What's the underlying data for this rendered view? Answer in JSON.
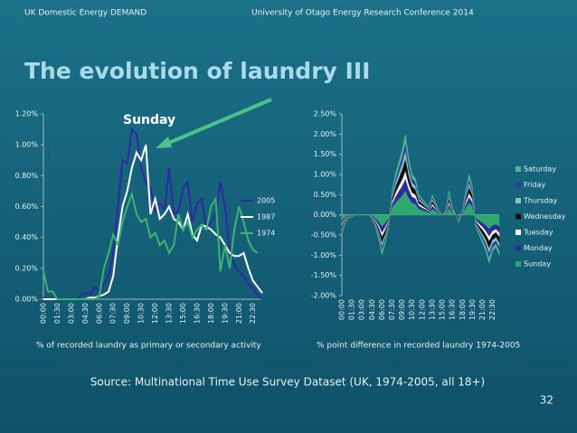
{
  "slide": {
    "header_left": "UK Domestic Energy DEMAND",
    "header_right": "University of Otago Energy Research Conference 2014",
    "title": "The evolution of laundry III",
    "source": "Source: Multinational Time Use Survey Dataset (UK, 1974-2005, all 18+)",
    "page_number": 32
  },
  "chart_data": [
    {
      "type": "line",
      "caption": "% of recorded laundry as primary or secondary activity",
      "annotation": "Sunday",
      "legend": "right",
      "grid": false,
      "categories": [
        "00:00",
        null,
        null,
        "01:30",
        null,
        null,
        "03:00",
        null,
        null,
        "04:30",
        null,
        null,
        "06:00",
        null,
        null,
        "07:30",
        null,
        null,
        "09:00",
        null,
        null,
        "10:30",
        null,
        null,
        "12:00",
        null,
        null,
        "13:30",
        null,
        null,
        "15:00",
        null,
        null,
        "16:30",
        null,
        null,
        "18:00",
        null,
        null,
        "19:30",
        null,
        null,
        "21:00",
        null,
        null,
        "22:30",
        null,
        null
      ],
      "ylim": [
        0,
        1.2
      ],
      "yticks": [
        {
          "value": 0,
          "label": "0.00%"
        },
        {
          "value": 0.2,
          "label": "0.20%"
        },
        {
          "value": 0.4,
          "label": "0.40%"
        },
        {
          "value": 0.6,
          "label": "0.60%"
        },
        {
          "value": 0.8,
          "label": "0.80%"
        },
        {
          "value": 1,
          "label": "1.00%"
        },
        {
          "value": 1.2,
          "label": "1.20%"
        }
      ],
      "series": [
        {
          "name": "2005",
          "color": "#2b2ba3",
          "values": [
            0.01,
            0,
            0,
            0,
            0,
            0,
            0,
            0,
            0.02,
            0.04,
            0.03,
            0.08,
            0.05,
            0.1,
            0.15,
            0.3,
            0.6,
            0.9,
            0.88,
            1.1,
            1.07,
            0.85,
            0.75,
            0.72,
            0.57,
            0.62,
            0.58,
            0.85,
            0.55,
            0.57,
            0.72,
            0.76,
            0.5,
            0.62,
            0.65,
            0.45,
            0.5,
            0.55,
            0.76,
            0.6,
            0.3,
            0.22,
            0.18,
            0.15,
            0.1,
            0.07,
            0.03,
            0
          ]
        },
        {
          "name": "1987",
          "color": "#ffffff",
          "values": [
            0,
            0,
            0,
            0,
            0,
            0,
            0,
            0,
            0,
            0,
            0.01,
            0.01,
            0.02,
            0.03,
            0.05,
            0.15,
            0.4,
            0.6,
            0.7,
            0.85,
            0.95,
            0.9,
            1.0,
            0.55,
            0.65,
            0.52,
            0.55,
            0.6,
            0.52,
            0.5,
            0.45,
            0.55,
            0.42,
            0.38,
            0.48,
            0.47,
            0.45,
            0.42,
            0.4,
            0.35,
            0.3,
            0.28,
            0.28,
            0.3,
            0.2,
            0.12,
            0.08,
            0.04
          ]
        },
        {
          "name": "1974",
          "color": "#3cb371",
          "values": [
            0.18,
            0.05,
            0.05,
            0,
            0,
            0,
            0,
            0,
            0,
            0,
            0,
            0,
            0.02,
            0.2,
            0.3,
            0.42,
            0.35,
            0.5,
            0.6,
            0.68,
            0.55,
            0.5,
            0.52,
            0.4,
            0.43,
            0.35,
            0.38,
            0.3,
            0.35,
            0.55,
            0.45,
            0.5,
            0.4,
            0.45,
            0.48,
            0.45,
            0.6,
            0.65,
            0.18,
            0.35,
            0.2,
            0.45,
            0.6,
            0.5,
            0.38,
            0.32,
            0.3,
            null
          ]
        }
      ]
    },
    {
      "type": "stacked_area",
      "caption": "% point difference in recorded laundry 1974-2005",
      "legend": "right",
      "grid": false,
      "categories": [
        "00:00",
        null,
        null,
        "01:30",
        null,
        null,
        "03:00",
        null,
        null,
        "04:30",
        null,
        null,
        "06:00",
        null,
        null,
        "07:30",
        null,
        null,
        "09:00",
        null,
        null,
        "10:30",
        null,
        null,
        "12:00",
        null,
        null,
        "13:30",
        null,
        null,
        "15:00",
        null,
        null,
        "16:30",
        null,
        null,
        "18:00",
        null,
        null,
        "19:30",
        null,
        null,
        "21:00",
        null,
        null,
        "22:30",
        null,
        null
      ],
      "ylim": [
        -2,
        2.5
      ],
      "yticks": [
        {
          "value": -2,
          "label": "-2.00%"
        },
        {
          "value": -1.5,
          "label": "-1.50%"
        },
        {
          "value": -1,
          "label": "-1.00%"
        },
        {
          "value": -0.5,
          "label": "-0.50%"
        },
        {
          "value": 0,
          "label": "0.00%"
        },
        {
          "value": 0.5,
          "label": "0.50%"
        },
        {
          "value": 1,
          "label": "1.00%"
        },
        {
          "value": 1.5,
          "label": "1.50%"
        },
        {
          "value": 2,
          "label": "2.00%"
        },
        {
          "value": 2.5,
          "label": "2.50%"
        }
      ],
      "series": [
        {
          "name": "Sunday",
          "color": "#2fa86e",
          "values": [
            -0.15,
            -0.06,
            -0.03,
            -0.02,
            0,
            0,
            0,
            0,
            0,
            -0.03,
            -0.09,
            -0.18,
            -0.3,
            -0.21,
            -0.09,
            0.18,
            0.3,
            0.39,
            0.48,
            0.6,
            0.42,
            0.3,
            0.27,
            0.15,
            0.12,
            0.09,
            0.06,
            0.15,
            0.09,
            0.03,
            0.05,
            0.03,
            0.18,
            0.06,
            0.04,
            -0.06,
            0.03,
            0.18,
            0.3,
            0.21,
            -0.09,
            -0.15,
            -0.21,
            -0.27,
            -0.36,
            -0.27,
            -0.24,
            -0.3
          ]
        },
        {
          "name": "Monday",
          "color": "#2c2c9c",
          "values": [
            -0.08,
            -0.03,
            -0.02,
            -0.01,
            0,
            0,
            0,
            0,
            0,
            -0.02,
            -0.05,
            -0.09,
            -0.15,
            -0.1,
            -0.05,
            0.09,
            0.15,
            0.2,
            0.24,
            0.3,
            0.21,
            0.15,
            0.14,
            0.08,
            0.06,
            0.05,
            0.03,
            0.08,
            0.05,
            0.02,
            -0.02,
            0.02,
            0.09,
            0.03,
            -0.02,
            -0.03,
            0.02,
            0.09,
            0.15,
            0.1,
            -0.05,
            -0.08,
            -0.1,
            -0.14,
            -0.18,
            -0.14,
            -0.12,
            -0.15
          ]
        },
        {
          "name": "Tuesday",
          "color": "#f2f2f2",
          "values": [
            -0.05,
            -0.02,
            -0.01,
            0,
            0,
            0,
            0,
            0,
            0,
            -0.01,
            -0.03,
            -0.06,
            -0.1,
            -0.07,
            -0.03,
            0.06,
            0.1,
            0.13,
            0.16,
            0.2,
            0.14,
            0.1,
            0.09,
            0.05,
            0.04,
            0.03,
            0.02,
            0.05,
            0.03,
            0.01,
            0.02,
            0.01,
            0.06,
            0.02,
            0.01,
            -0.02,
            0.01,
            0.06,
            0.1,
            0.07,
            -0.03,
            -0.05,
            -0.07,
            -0.09,
            -0.12,
            -0.09,
            -0.08,
            -0.1
          ]
        },
        {
          "name": "Wednesday",
          "color": "#111111",
          "values": [
            -0.07,
            -0.03,
            -0.01,
            -0.01,
            0,
            0,
            0,
            0,
            0,
            -0.01,
            -0.04,
            -0.09,
            -0.15,
            -0.11,
            -0.04,
            0.09,
            0.15,
            0.19,
            0.24,
            0.3,
            0.21,
            0.15,
            0.13,
            0.07,
            0.06,
            0.04,
            0.03,
            0.07,
            0.04,
            0.01,
            -0.03,
            0.01,
            0.09,
            0.03,
            -0.02,
            -0.03,
            0.01,
            0.09,
            0.15,
            0.11,
            -0.04,
            -0.07,
            -0.11,
            -0.13,
            -0.18,
            -0.13,
            -0.12,
            -0.15
          ]
        },
        {
          "name": "Thursday",
          "color": "#86c6b4",
          "values": [
            -0.05,
            -0.02,
            -0.01,
            0,
            0,
            0,
            0,
            0,
            0,
            -0.01,
            -0.03,
            -0.06,
            -0.1,
            -0.07,
            -0.03,
            0.06,
            0.1,
            0.13,
            0.16,
            0.2,
            0.14,
            0.1,
            0.09,
            0.05,
            0.04,
            0.03,
            0.02,
            0.05,
            0.03,
            0.01,
            0.01,
            0.01,
            0.06,
            0.02,
            0.01,
            -0.02,
            0.01,
            0.06,
            0.1,
            0.07,
            -0.03,
            -0.05,
            -0.07,
            -0.09,
            -0.12,
            -0.09,
            -0.08,
            -0.1
          ]
        },
        {
          "name": "Friday",
          "color": "#3434b4",
          "values": [
            -0.05,
            -0.02,
            -0.01,
            0,
            0,
            0,
            0,
            0,
            0,
            -0.01,
            -0.03,
            -0.06,
            -0.1,
            -0.07,
            -0.03,
            0.06,
            0.1,
            0.13,
            0.16,
            0.2,
            0.14,
            0.1,
            0.09,
            0.05,
            0.04,
            0.03,
            0.02,
            0.05,
            0.03,
            0.01,
            -0.02,
            0.01,
            0.06,
            0.02,
            -0.01,
            -0.02,
            0.01,
            0.06,
            0.1,
            0.07,
            -0.03,
            -0.05,
            -0.07,
            -0.09,
            -0.12,
            -0.09,
            -0.08,
            -0.1
          ]
        },
        {
          "name": "Saturday",
          "color": "#4cb88a",
          "values": [
            -0.05,
            -0.02,
            -0.01,
            -0.01,
            0,
            0,
            0,
            0,
            0,
            -0.01,
            -0.03,
            -0.06,
            -0.1,
            -0.07,
            -0.03,
            0.06,
            0.1,
            0.13,
            0.16,
            0.2,
            0.14,
            0.1,
            0.09,
            0.05,
            0.04,
            0.03,
            0.02,
            0.05,
            0.03,
            0.01,
            -0.01,
            0.01,
            0.06,
            0.02,
            -0.01,
            -0.02,
            0.01,
            0.06,
            0.1,
            0.07,
            -0.03,
            -0.05,
            -0.07,
            -0.09,
            -0.12,
            -0.09,
            -0.08,
            -0.1
          ]
        }
      ]
    }
  ]
}
